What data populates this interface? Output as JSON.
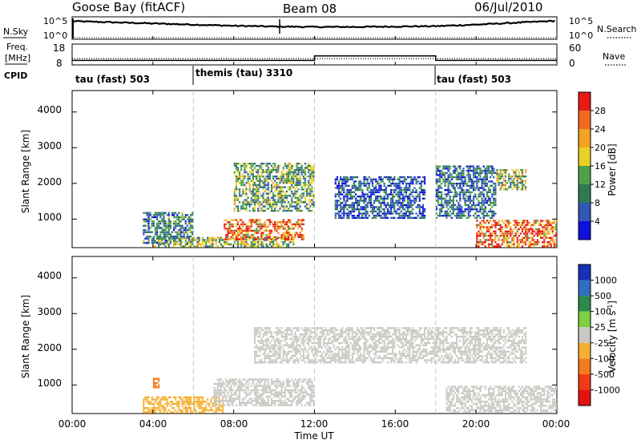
{
  "header": {
    "radar": "Goose Bay (fitACF)",
    "beam": "Beam 08",
    "date": "06/Jul/2010"
  },
  "noise_panel": {
    "left_label": "N.Sky",
    "right_label": "N.Search",
    "tick_top": "10^5",
    "tick_bottom": "10^0"
  },
  "freq_panel": {
    "left_label_line1": "Freq.",
    "left_label_line2": "[MHz]",
    "left_tick_top": "18",
    "left_tick_bottom": "8",
    "right_label": "Nave",
    "right_tick_top": "60",
    "right_tick_bottom": "0"
  },
  "cpid": {
    "label": "CPID",
    "segments": [
      {
        "text": "tau (fast) 503",
        "start_hour": 0
      },
      {
        "text": "themis (tau) 3310",
        "start_hour": 6
      },
      {
        "text": "tau (fast) 503",
        "start_hour": 18
      }
    ]
  },
  "axes": {
    "ylabel": "Slant Range [km]",
    "xlabel": "Time UT",
    "yticks": [
      "1000",
      "2000",
      "3000",
      "4000"
    ],
    "xticks": [
      "00:00",
      "04:00",
      "08:00",
      "12:00",
      "16:00",
      "20:00",
      "00:00"
    ]
  },
  "power_colorbar": {
    "label": "Power [dB]",
    "ticks": [
      "4",
      "8",
      "12",
      "16",
      "20",
      "24",
      "28"
    ],
    "colors": [
      "#1010dd",
      "#2f59b5",
      "#2f7a55",
      "#4fa04a",
      "#e8d227",
      "#f3a221",
      "#f36a1e",
      "#e81a14"
    ]
  },
  "velocity_colorbar": {
    "label": "Velocity [m s",
    "label_sup": "-1",
    "label_end": "]",
    "ticks": [
      "1000",
      "500",
      "100",
      "25",
      "-25",
      "-100",
      "-500",
      "-1000"
    ],
    "colors": [
      "#1830b8",
      "#3070c0",
      "#2e8a4c",
      "#7fd043",
      "#c9c9c4",
      "#f4b033",
      "#f47b1f",
      "#ef3c14",
      "#e4120f"
    ]
  },
  "chart_data": [
    {
      "type": "line",
      "title": "Goose Bay (fitACF) Beam 08",
      "series": [
        {
          "name": "N.Sky",
          "x": [
            0,
            2,
            4,
            6,
            8,
            10,
            12,
            14,
            16,
            18,
            20,
            22,
            24
          ],
          "values_log10": [
            4.5,
            4.2,
            3.9,
            3.6,
            3.3,
            3.1,
            3.0,
            3.0,
            3.1,
            3.2,
            3.6,
            4.1,
            4.6
          ]
        },
        {
          "name": "N.Search",
          "x": [
            0,
            24
          ],
          "values_log10": [
            0,
            0
          ]
        }
      ],
      "ylim_log10": [
        0,
        5
      ]
    },
    {
      "type": "line",
      "series": [
        {
          "name": "Freq. [MHz]",
          "x": [
            0,
            12,
            12,
            18,
            18,
            24
          ],
          "values": [
            10,
            10,
            12.5,
            12.5,
            10,
            10
          ]
        },
        {
          "name": "Nave",
          "x": [
            0,
            24
          ],
          "values": [
            18,
            18
          ]
        }
      ],
      "ylim": [
        8,
        18
      ],
      "y2lim": [
        0,
        60
      ]
    },
    {
      "type": "heatmap",
      "xlabel": "Time UT",
      "ylabel": "Slant Range [km]",
      "xlim_hours": [
        0,
        24
      ],
      "ylim": [
        200,
        4600
      ],
      "colorbar": "Power [dB]",
      "clim": [
        0,
        30
      ],
      "patches": [
        {
          "t": [
            4.0,
            11.0
          ],
          "r": [
            200,
            500
          ],
          "value": 14
        },
        {
          "t": [
            7.5,
            11.5
          ],
          "r": [
            400,
            1000
          ],
          "value": 24
        },
        {
          "t": [
            3.5,
            6.0
          ],
          "r": [
            300,
            1200
          ],
          "value": 9
        },
        {
          "t": [
            8.0,
            12.0
          ],
          "r": [
            1200,
            2600
          ],
          "value": 12
        },
        {
          "t": [
            13.0,
            17.5
          ],
          "r": [
            1000,
            2200
          ],
          "value": 6
        },
        {
          "t": [
            18.0,
            21.0
          ],
          "r": [
            1000,
            2500
          ],
          "value": 8
        },
        {
          "t": [
            20.0,
            24.0
          ],
          "r": [
            200,
            1000
          ],
          "value": 25
        },
        {
          "t": [
            21.0,
            22.5
          ],
          "r": [
            1800,
            2400
          ],
          "value": 15
        }
      ]
    },
    {
      "type": "heatmap",
      "xlabel": "Time UT",
      "ylabel": "Slant Range [km]",
      "xlim_hours": [
        0,
        24
      ],
      "ylim": [
        200,
        4600
      ],
      "colorbar": "Velocity [m s-1]",
      "clim": [
        -1000,
        1000
      ],
      "patches": [
        {
          "t": [
            3.5,
            7.5
          ],
          "r": [
            200,
            700
          ],
          "value": -60
        },
        {
          "t": [
            7.0,
            12.0
          ],
          "r": [
            400,
            1200
          ],
          "value": 0
        },
        {
          "t": [
            9.0,
            18.0
          ],
          "r": [
            1600,
            2600
          ],
          "value": 0
        },
        {
          "t": [
            18.0,
            22.5
          ],
          "r": [
            1600,
            2600
          ],
          "value": 0
        },
        {
          "t": [
            18.5,
            24.0
          ],
          "r": [
            200,
            1000
          ],
          "value": 0
        },
        {
          "t": [
            4.0,
            4.3
          ],
          "r": [
            900,
            1200
          ],
          "value": -300
        }
      ]
    }
  ]
}
